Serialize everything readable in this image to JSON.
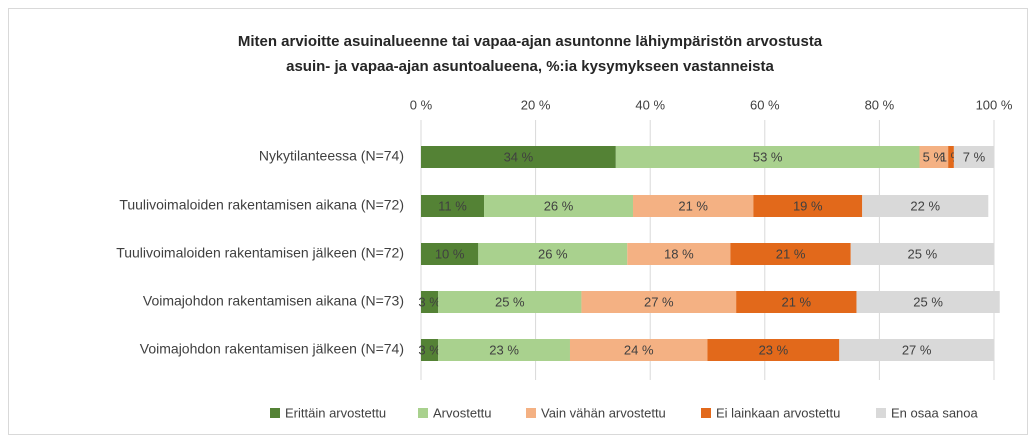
{
  "chart_data": {
    "type": "stacked-bar-horizontal",
    "title": [
      "Miten arvioitte asuinalueenne tai vapaa-ajan asuntonne lähiympäristön arvostusta",
      "asuin- ja vapaa-ajan asuntoalueena, %:ia kysymykseen vastanneista"
    ],
    "categories": [
      "Nykytilanteessa (N=74)",
      "Tuulivoimaloiden rakentamisen aikana (N=72)",
      "Tuulivoimaloiden rakentamisen jälkeen (N=72)",
      "Voimajohdon rakentamisen aikana (N=73)",
      "Voimajohdon rakentamisen jälkeen (N=74)"
    ],
    "series": [
      {
        "name": "Erittäin arvostettu",
        "color": "#548235",
        "values": [
          34,
          11,
          10,
          3,
          3
        ],
        "value_labels": [
          "34 %",
          "11 %",
          "10 %",
          "3 %",
          "3 %"
        ]
      },
      {
        "name": "Arvostettu",
        "color": "#a9d18e",
        "values": [
          53,
          26,
          26,
          25,
          23
        ],
        "value_labels": [
          "53 %",
          "26 %",
          "26 %",
          "25 %",
          "23 %"
        ]
      },
      {
        "name": "Vain vähän arvostettu",
        "color": "#f4b183",
        "values": [
          5,
          21,
          18,
          27,
          24
        ],
        "value_labels": [
          "5 %",
          "21 %",
          "18 %",
          "27 %",
          "24 %"
        ]
      },
      {
        "name": "Ei lainkaan arvostettu",
        "color": "#e2691b",
        "values": [
          1,
          19,
          21,
          21,
          23
        ],
        "value_labels": [
          "1 %",
          "19 %",
          "21 %",
          "21 %",
          "23 %"
        ]
      },
      {
        "name": "En osaa sanoa",
        "color": "#d9d9d9",
        "values": [
          7,
          22,
          25,
          25,
          27
        ],
        "value_labels": [
          "7 %",
          "22 %",
          "25 %",
          "25 %",
          "27 %"
        ]
      }
    ],
    "xlim": [
      0,
      100
    ],
    "xticks": [
      {
        "value": 0,
        "label": "0 %"
      },
      {
        "value": 20,
        "label": "20 %"
      },
      {
        "value": 40,
        "label": "40 %"
      },
      {
        "value": 60,
        "label": "60 %"
      },
      {
        "value": 80,
        "label": "80 %"
      },
      {
        "value": 100,
        "label": "100 %"
      }
    ],
    "grid": true,
    "legend": "bottom"
  }
}
